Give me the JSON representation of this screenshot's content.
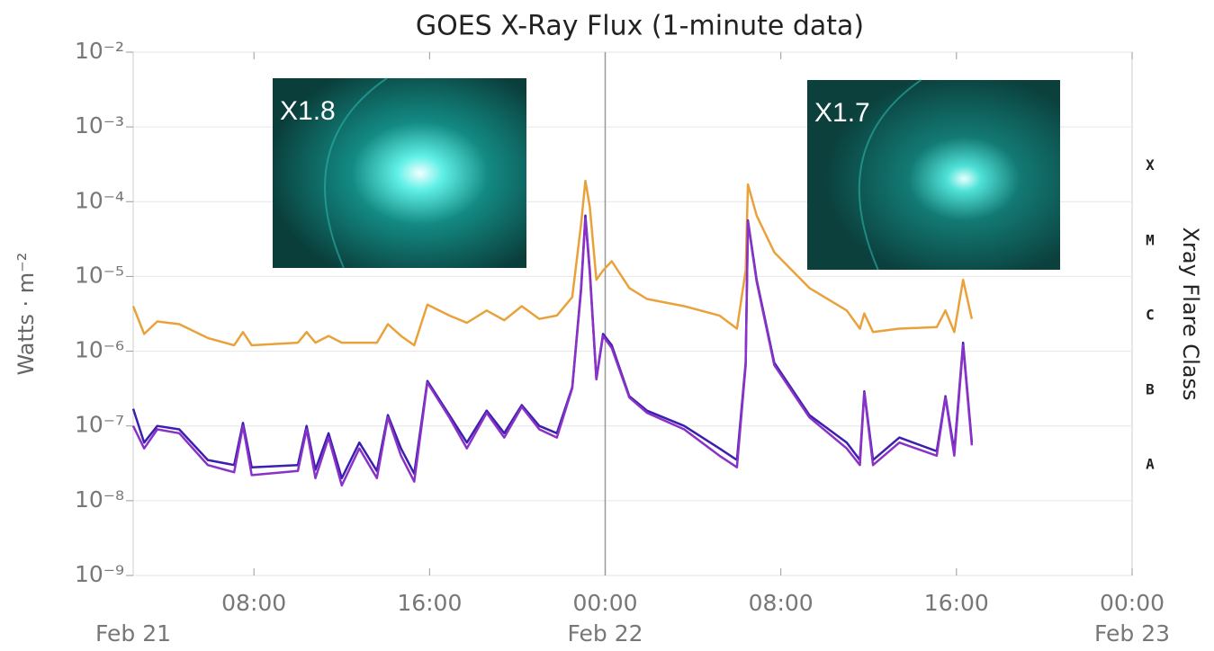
{
  "chart_data": {
    "type": "line",
    "title": "GOES X-Ray Flux (1-minute data)",
    "y_label": "Watts · m⁻²",
    "y2_label": "Xray Flare Class",
    "log_y": true,
    "grid": true,
    "xlim": [
      2.5,
      48
    ],
    "xticks": [
      {
        "value": 8,
        "label": "08:00"
      },
      {
        "value": 16,
        "label": "16:00"
      },
      {
        "value": 24,
        "label": "00:00"
      },
      {
        "value": 32,
        "label": "08:00"
      },
      {
        "value": 40,
        "label": "16:00"
      },
      {
        "value": 48,
        "label": "00:00"
      }
    ],
    "date_labels": [
      {
        "value": 2.5,
        "label": "Feb 21"
      },
      {
        "value": 24,
        "label": "Feb 22"
      },
      {
        "value": 48,
        "label": "Feb 23"
      }
    ],
    "ylim": [
      1e-09,
      0.01
    ],
    "yticks": [
      {
        "value": 1e-09,
        "label": "10⁻⁹"
      },
      {
        "value": 1e-08,
        "label": "10⁻⁸"
      },
      {
        "value": 1e-07,
        "label": "10⁻⁷"
      },
      {
        "value": 1e-06,
        "label": "10⁻⁶"
      },
      {
        "value": 1e-05,
        "label": "10⁻⁵"
      },
      {
        "value": 0.0001,
        "label": "10⁻⁴"
      },
      {
        "value": 0.001,
        "label": "10⁻³"
      },
      {
        "value": 0.01,
        "label": "10⁻²"
      }
    ],
    "flare_classes": [
      {
        "value": 3e-08,
        "label": "A"
      },
      {
        "value": 3e-07,
        "label": "B"
      },
      {
        "value": 3e-06,
        "label": "C"
      },
      {
        "value": 3e-05,
        "label": "M"
      },
      {
        "value": 0.0003,
        "label": "X"
      }
    ],
    "insets": [
      {
        "label": "X1.8"
      },
      {
        "label": "X1.7"
      }
    ],
    "x": [
      2.5,
      3.0,
      3.6,
      4.6,
      5.9,
      7.1,
      7.5,
      7.9,
      10.0,
      10.4,
      10.8,
      11.4,
      12.0,
      12.8,
      13.6,
      14.1,
      14.7,
      15.3,
      15.9,
      16.9,
      17.7,
      18.6,
      19.4,
      20.2,
      21.0,
      21.8,
      22.5,
      22.9,
      23.1,
      23.3,
      23.6,
      23.9,
      24.3,
      25.1,
      25.9,
      27.6,
      29.2,
      30.0,
      30.4,
      30.5,
      30.9,
      31.7,
      33.3,
      35.0,
      35.6,
      35.8,
      36.2,
      37.4,
      39.1,
      39.5,
      39.9,
      40.3,
      40.7
    ],
    "series": [
      {
        "color": "#e9a23b",
        "values": [
          4e-06,
          1.7e-06,
          2.5e-06,
          2.3e-06,
          1.5e-06,
          1.2e-06,
          1.8e-06,
          1.2e-06,
          1.3e-06,
          1.8e-06,
          1.3e-06,
          1.6e-06,
          1.3e-06,
          1.3e-06,
          1.3e-06,
          2.3e-06,
          1.6e-06,
          1.2e-06,
          4.2e-06,
          3e-06,
          2.4e-06,
          3.5e-06,
          2.6e-06,
          4e-06,
          2.7e-06,
          3e-06,
          5.3e-06,
          5e-05,
          0.00019,
          8.5e-05,
          9e-06,
          1.2e-05,
          1.6e-05,
          7e-06,
          5e-06,
          4e-06,
          3e-06,
          2e-06,
          1.2e-05,
          0.00017,
          6.5e-05,
          2.1e-05,
          7e-06,
          3.5e-06,
          2e-06,
          3.2e-06,
          1.8e-06,
          2e-06,
          2.1e-06,
          3.5e-06,
          1.8e-06,
          9e-06,
          2.7e-06
        ]
      },
      {
        "color": "#3b1fae",
        "values": [
          1.7e-07,
          6e-08,
          1e-07,
          9e-08,
          3.5e-08,
          3e-08,
          1.1e-07,
          2.8e-08,
          3e-08,
          1e-07,
          2.6e-08,
          8e-08,
          2e-08,
          6e-08,
          2.5e-08,
          1.4e-07,
          5e-08,
          2.3e-08,
          4e-07,
          1.4e-07,
          6e-08,
          1.6e-07,
          8e-08,
          1.9e-07,
          1e-07,
          8e-08,
          3.3e-07,
          7e-06,
          6.5e-05,
          1.2e-05,
          4.3e-07,
          1.7e-06,
          1.2e-06,
          2.5e-07,
          1.6e-07,
          1e-07,
          5e-08,
          3.5e-08,
          7e-07,
          5.6e-05,
          9e-06,
          7e-07,
          1.4e-07,
          6e-08,
          3.5e-08,
          2.9e-07,
          3.5e-08,
          7e-08,
          4.6e-08,
          2.5e-07,
          4.6e-08,
          1.3e-06,
          6e-08
        ]
      },
      {
        "color": "#8a32c8",
        "values": [
          1e-07,
          5e-08,
          9e-08,
          8e-08,
          3e-08,
          2.4e-08,
          1e-07,
          2.2e-08,
          2.5e-08,
          9e-08,
          2e-08,
          7e-08,
          1.6e-08,
          5e-08,
          2e-08,
          1.3e-07,
          4e-08,
          1.8e-08,
          3.8e-07,
          1.3e-07,
          5e-08,
          1.5e-07,
          7e-08,
          1.8e-07,
          9e-08,
          7e-08,
          3.2e-07,
          6.5e-06,
          6e-05,
          1.1e-05,
          4.2e-07,
          1.6e-06,
          1.1e-06,
          2.4e-07,
          1.5e-07,
          9e-08,
          4e-08,
          2.8e-08,
          6.5e-07,
          5.4e-05,
          8.5e-06,
          6.5e-07,
          1.3e-07,
          5e-08,
          3e-08,
          2.8e-07,
          3e-08,
          6e-08,
          4e-08,
          2.4e-07,
          4e-08,
          1.2e-06,
          5.5e-08
        ]
      }
    ]
  }
}
